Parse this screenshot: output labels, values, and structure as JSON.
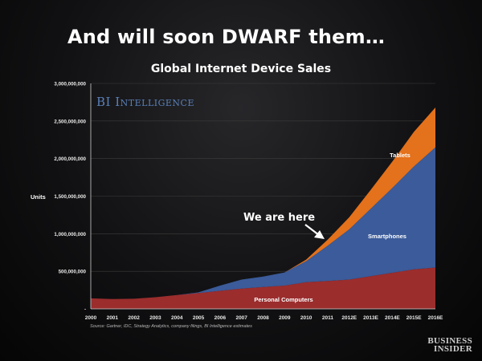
{
  "slide": {
    "title": "And will soon DWARF them…",
    "source": "Source: Gartner, IDC, Strategy Analytics, company filings, BI Intelligence estimates",
    "watermark": "BI Intelligence",
    "publisher": [
      "BUSINESS",
      "INSIDER"
    ]
  },
  "chart_data": {
    "type": "area",
    "stacked": true,
    "title": "Global Internet Device Sales",
    "xlabel": "",
    "ylabel": "Units",
    "ylim": [
      0,
      3000000000
    ],
    "yticks": [
      0,
      500000000,
      1000000000,
      1500000000,
      2000000000,
      2500000000,
      3000000000
    ],
    "ytick_labels": [
      "-",
      "500,000,000",
      "1,000,000,000",
      "1,500,000,000",
      "2,000,000,000",
      "2,500,000,000",
      "3,000,000,000"
    ],
    "grid": true,
    "categories": [
      "2000",
      "2001",
      "2002",
      "2003",
      "2004",
      "2005",
      "2006",
      "2007",
      "2008",
      "2009",
      "2010",
      "2011",
      "2012E",
      "2013E",
      "2014E",
      "2015E",
      "2016E"
    ],
    "series": [
      {
        "name": "Personal Computers",
        "color": "#9b2d2d",
        "values": [
          140000000,
          130000000,
          135000000,
          155000000,
          185000000,
          210000000,
          240000000,
          270000000,
          290000000,
          310000000,
          355000000,
          370000000,
          390000000,
          435000000,
          480000000,
          525000000,
          550000000
        ]
      },
      {
        "name": "Smartphones",
        "color": "#3b5b9a",
        "values": [
          0,
          0,
          0,
          0,
          0,
          10000000,
          70000000,
          120000000,
          140000000,
          175000000,
          280000000,
          470000000,
          670000000,
          900000000,
          1130000000,
          1370000000,
          1600000000
        ]
      },
      {
        "name": "Tablets",
        "color": "#e4711b",
        "values": [
          0,
          0,
          0,
          0,
          0,
          0,
          0,
          0,
          0,
          0,
          20000000,
          80000000,
          160000000,
          250000000,
          350000000,
          460000000,
          530000000
        ]
      }
    ],
    "annotation": {
      "text": "We are here",
      "color": "#ffffff"
    }
  }
}
